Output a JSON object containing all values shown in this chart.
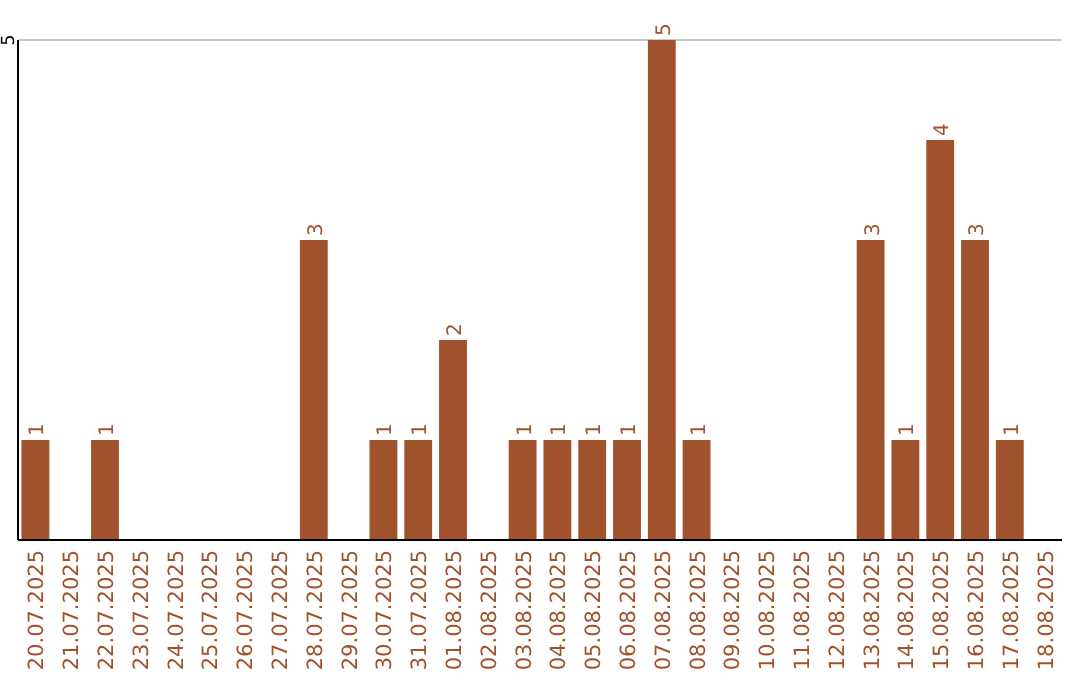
{
  "chart_data": {
    "type": "bar",
    "categories": [
      "20.07.2025",
      "21.07.2025",
      "22.07.2025",
      "23.07.2025",
      "24.07.2025",
      "25.07.2025",
      "26.07.2025",
      "27.07.2025",
      "28.07.2025",
      "29.07.2025",
      "30.07.2025",
      "31.07.2025",
      "01.08.2025",
      "02.08.2025",
      "03.08.2025",
      "04.08.2025",
      "05.08.2025",
      "06.08.2025",
      "07.08.2025",
      "08.08.2025",
      "09.08.2025",
      "10.08.2025",
      "11.08.2025",
      "12.08.2025",
      "13.08.2025",
      "14.08.2025",
      "15.08.2025",
      "16.08.2025",
      "17.08.2025",
      "18.08.2025"
    ],
    "values": [
      1,
      0,
      1,
      0,
      0,
      0,
      0,
      0,
      3,
      0,
      1,
      1,
      2,
      0,
      1,
      1,
      1,
      1,
      5,
      1,
      0,
      0,
      0,
      0,
      3,
      1,
      4,
      3,
      1,
      0
    ],
    "value_labels": [
      "1",
      null,
      "1",
      null,
      null,
      null,
      null,
      null,
      "3",
      null,
      "1",
      "1",
      "2",
      null,
      "1",
      "1",
      "1",
      "1",
      "5",
      "1",
      null,
      null,
      null,
      null,
      "3",
      "1",
      "4",
      "3",
      "1",
      null
    ],
    "color": "#a0522d",
    "ylim": [
      0,
      5
    ],
    "yticks": [
      5
    ],
    "ref_lines": [
      {
        "axis": "y",
        "value": 5,
        "color": "#c8c8c8"
      }
    ]
  }
}
